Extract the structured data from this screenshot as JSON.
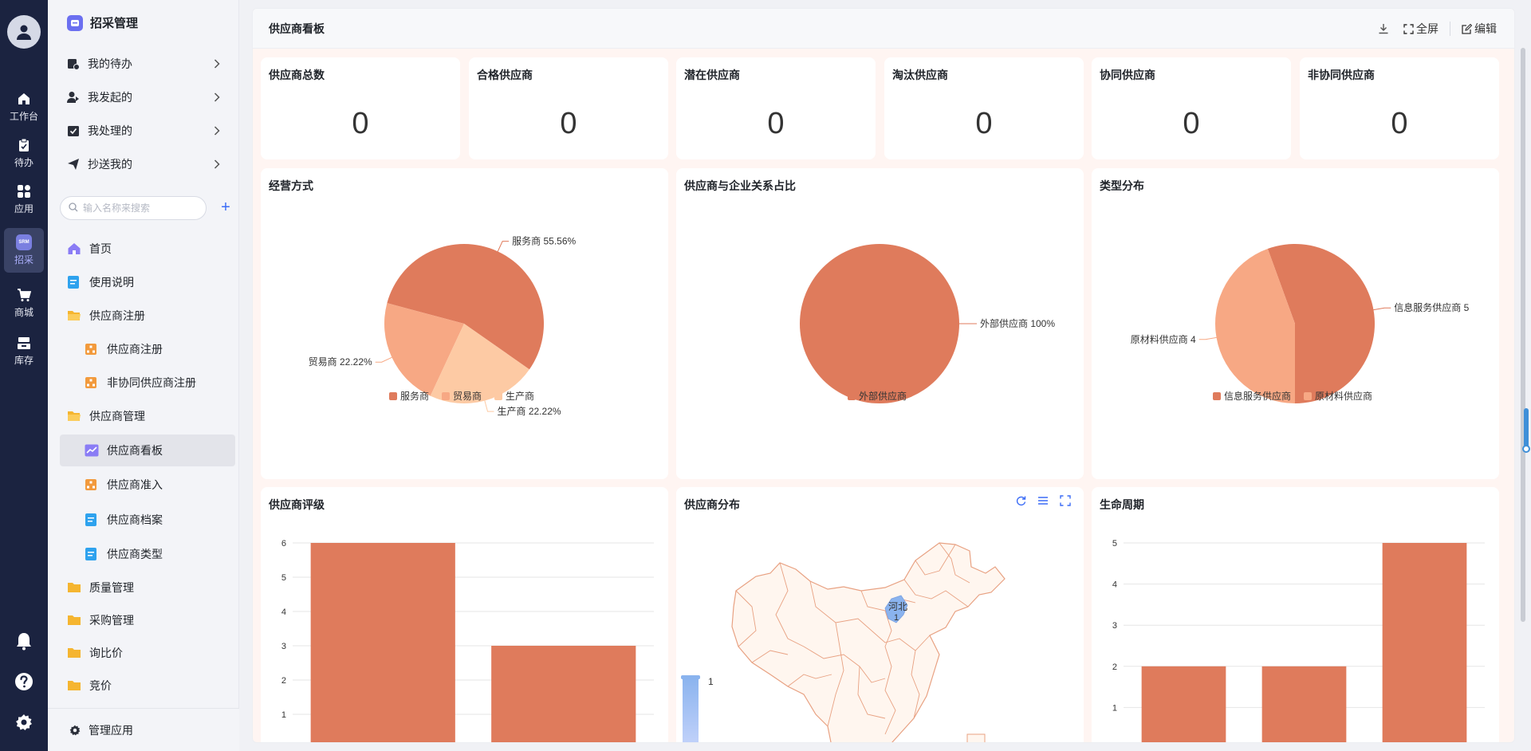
{
  "rail": {
    "items": [
      {
        "label": "工作台",
        "icon": "home-icon"
      },
      {
        "label": "待办",
        "icon": "clipboard-icon"
      },
      {
        "label": "应用",
        "icon": "apps-icon"
      },
      {
        "label": "招采",
        "icon": "srm-icon"
      },
      {
        "label": "商城",
        "icon": "cart-icon"
      },
      {
        "label": "库存",
        "icon": "inventory-icon"
      }
    ],
    "active": "招采",
    "srm_badge": "SRM"
  },
  "sidebar": {
    "title": "招采管理",
    "tasks": [
      {
        "label": "我的待办"
      },
      {
        "label": "我发起的"
      },
      {
        "label": "我处理的"
      },
      {
        "label": "抄送我的"
      }
    ],
    "search_placeholder": "输入名称来搜索",
    "nav": [
      {
        "label": "首页"
      },
      {
        "label": "使用说明"
      },
      {
        "label": "供应商注册"
      },
      {
        "label": "供应商注册"
      },
      {
        "label": "非协同供应商注册"
      },
      {
        "label": "供应商管理"
      },
      {
        "label": "供应商看板"
      },
      {
        "label": "供应商准入"
      },
      {
        "label": "供应商档案"
      },
      {
        "label": "供应商类型"
      },
      {
        "label": "质量管理"
      },
      {
        "label": "采购管理"
      },
      {
        "label": "询比价"
      },
      {
        "label": "竞价"
      }
    ],
    "active": "供应商看板",
    "manage_label": "管理应用"
  },
  "header": {
    "title": "供应商看板",
    "fullscreen_label": "全屏",
    "edit_label": "编辑"
  },
  "stats": [
    {
      "label": "供应商总数",
      "value": "0"
    },
    {
      "label": "合格供应商",
      "value": "0"
    },
    {
      "label": "潜在供应商",
      "value": "0"
    },
    {
      "label": "淘汰供应商",
      "value": "0"
    },
    {
      "label": "协同供应商",
      "value": "0"
    },
    {
      "label": "非协同供应商",
      "value": "0"
    }
  ],
  "colors": {
    "primary_slice": "#df7b5c",
    "secondary_slice": "#f7a884",
    "tertiary_slice": "#fdcaa4",
    "map_fill": "#fff6ef",
    "map_border": "#e8a182",
    "map_highlight": "#8ab3ee",
    "accent": "#3b6cf6"
  },
  "chart_data": [
    {
      "type": "pie",
      "title": "经营方式",
      "slices": [
        {
          "name": "服务商",
          "value": 55.56,
          "label": "服务商 55.56%"
        },
        {
          "name": "贸易商",
          "value": 22.22,
          "label": "贸易商 22.22%"
        },
        {
          "name": "生产商",
          "value": 22.22,
          "label": "生产商 22.22%"
        }
      ],
      "legend": [
        "服务商",
        "贸易商",
        "生产商"
      ],
      "legend_position": "bottom"
    },
    {
      "type": "pie",
      "title": "供应商与企业关系占比",
      "slices": [
        {
          "name": "外部供应商",
          "value": 100,
          "label": "外部供应商 100%"
        }
      ],
      "legend": [
        "外部供应商"
      ],
      "legend_position": "bottom"
    },
    {
      "type": "pie",
      "title": "类型分布",
      "slices": [
        {
          "name": "信息服务供应商",
          "value": 5,
          "label": "信息服务供应商 5"
        },
        {
          "name": "原材料供应商",
          "value": 4,
          "label": "原材料供应商 4"
        }
      ],
      "legend": [
        "信息服务供应商",
        "原材料供应商"
      ],
      "legend_position": "bottom"
    },
    {
      "type": "bar",
      "title": "供应商评级",
      "values": [
        6,
        3
      ],
      "ylim": [
        0,
        6
      ],
      "yticks": [
        "0",
        "1",
        "2",
        "3",
        "4",
        "5",
        "6"
      ]
    },
    {
      "type": "map",
      "title": "供应商分布",
      "region_label": "河北",
      "region_value": "1",
      "visual_map_max": "1"
    },
    {
      "type": "bar",
      "title": "生命周期",
      "values": [
        2,
        2,
        5
      ],
      "ylim": [
        0,
        5
      ],
      "yticks": [
        "0",
        "1",
        "2",
        "3",
        "4",
        "5"
      ]
    }
  ]
}
